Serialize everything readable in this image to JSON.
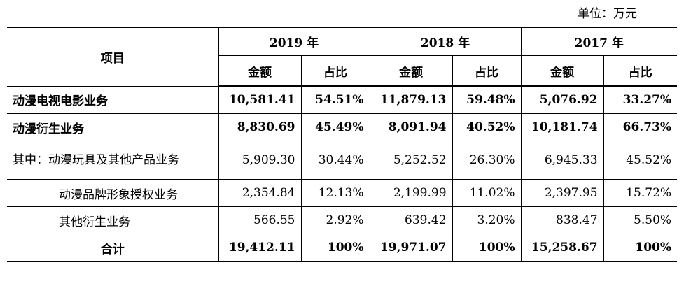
{
  "unit_label": "单位：万元",
  "header": {
    "item_label": "项目",
    "years": [
      "2019 年",
      "2018 年",
      "2017 年"
    ],
    "amount_label": "金额",
    "ratio_label": "占比"
  },
  "rows": [
    {
      "label": "动漫电视电影业务",
      "values": [
        "10,581.41",
        "54.51%",
        "11,879.13",
        "59.48%",
        "5,076.92",
        "33.27%"
      ]
    },
    {
      "label": "动漫衍生业务",
      "values": [
        "8,830.69",
        "45.49%",
        "8,091.94",
        "40.52%",
        "10,181.74",
        "66.73%"
      ]
    },
    {
      "label": "其中：动漫玩具及其他产品业务",
      "values": [
        "5,909.30",
        "30.44%",
        "5,252.52",
        "26.30%",
        "6,945.33",
        "45.52%"
      ]
    },
    {
      "label": "动漫品牌形象授权业务",
      "values": [
        "2,354.84",
        "12.13%",
        "2,199.99",
        "11.02%",
        "2,397.95",
        "15.72%"
      ]
    },
    {
      "label": "其他衍生业务",
      "values": [
        "566.55",
        "2.92%",
        "639.42",
        "3.20%",
        "838.47",
        "5.50%"
      ]
    },
    {
      "label": "合计",
      "values": [
        "19,412.11",
        "100%",
        "19,971.07",
        "100%",
        "15,258.67",
        "100%"
      ]
    }
  ]
}
